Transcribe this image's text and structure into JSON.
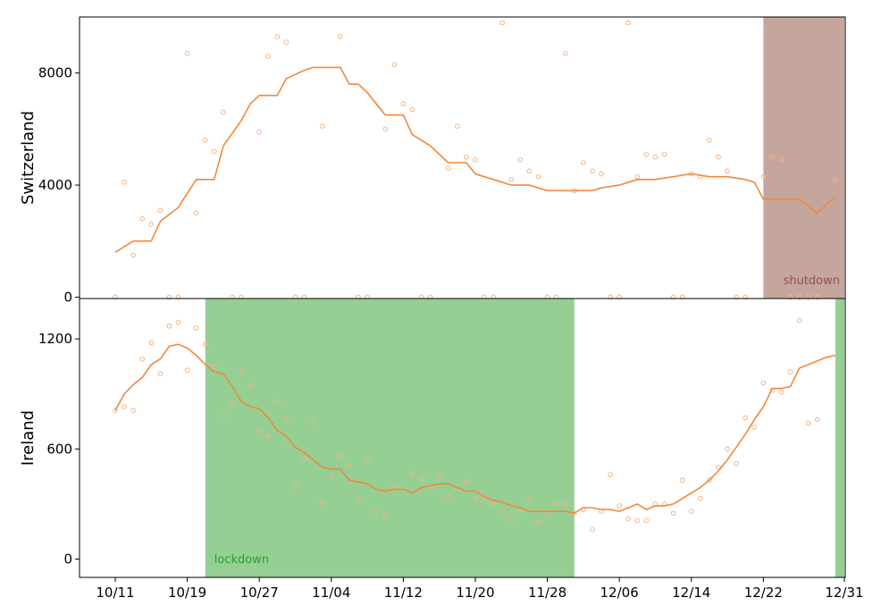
{
  "chart_data": [
    {
      "type": "line",
      "panel": "top",
      "ylabel": "Switzerland",
      "ylim": [
        -50,
        10000
      ],
      "yticks": [
        0,
        4000,
        8000
      ],
      "line_color": "#f0883a",
      "band": {
        "label": "shutdown",
        "start": "12/22",
        "end": "12/31",
        "color": "#c4a69d",
        "label_color": "#8c564b"
      },
      "smoothed": [
        {
          "x": "10/11",
          "y": 1600
        },
        {
          "x": "10/13",
          "y": 2000
        },
        {
          "x": "10/15",
          "y": 2000
        },
        {
          "x": "10/16",
          "y": 2700
        },
        {
          "x": "10/18",
          "y": 3200
        },
        {
          "x": "10/20",
          "y": 4200
        },
        {
          "x": "10/22",
          "y": 4200
        },
        {
          "x": "10/23",
          "y": 5400
        },
        {
          "x": "10/25",
          "y": 6300
        },
        {
          "x": "10/26",
          "y": 6900
        },
        {
          "x": "10/27",
          "y": 7200
        },
        {
          "x": "10/29",
          "y": 7200
        },
        {
          "x": "10/30",
          "y": 7800
        },
        {
          "x": "11/01",
          "y": 8100
        },
        {
          "x": "11/02",
          "y": 8200
        },
        {
          "x": "11/05",
          "y": 8200
        },
        {
          "x": "11/06",
          "y": 7600
        },
        {
          "x": "11/07",
          "y": 7600
        },
        {
          "x": "11/08",
          "y": 7300
        },
        {
          "x": "11/10",
          "y": 6500
        },
        {
          "x": "11/11",
          "y": 6500
        },
        {
          "x": "11/12",
          "y": 6500
        },
        {
          "x": "11/13",
          "y": 5800
        },
        {
          "x": "11/15",
          "y": 5400
        },
        {
          "x": "11/17",
          "y": 4800
        },
        {
          "x": "11/19",
          "y": 4800
        },
        {
          "x": "11/20",
          "y": 4400
        },
        {
          "x": "11/22",
          "y": 4200
        },
        {
          "x": "11/24",
          "y": 4000
        },
        {
          "x": "11/26",
          "y": 4000
        },
        {
          "x": "11/28",
          "y": 3800
        },
        {
          "x": "11/30",
          "y": 3800
        },
        {
          "x": "12/03",
          "y": 3800
        },
        {
          "x": "12/04",
          "y": 3900
        },
        {
          "x": "12/06",
          "y": 4000
        },
        {
          "x": "12/08",
          "y": 4200
        },
        {
          "x": "12/10",
          "y": 4200
        },
        {
          "x": "12/12",
          "y": 4300
        },
        {
          "x": "12/14",
          "y": 4400
        },
        {
          "x": "12/16",
          "y": 4300
        },
        {
          "x": "12/18",
          "y": 4300
        },
        {
          "x": "12/20",
          "y": 4200
        },
        {
          "x": "12/21",
          "y": 4100
        },
        {
          "x": "12/22",
          "y": 3500
        },
        {
          "x": "12/26",
          "y": 3500
        },
        {
          "x": "12/28",
          "y": 3000
        },
        {
          "x": "12/30",
          "y": 3600
        }
      ],
      "daily": [
        {
          "x": "10/11",
          "y": 0
        },
        {
          "x": "10/12",
          "y": 4100
        },
        {
          "x": "10/13",
          "y": 1500
        },
        {
          "x": "10/14",
          "y": 2800
        },
        {
          "x": "10/15",
          "y": 2600
        },
        {
          "x": "10/16",
          "y": 3100
        },
        {
          "x": "10/17",
          "y": 0
        },
        {
          "x": "10/18",
          "y": 0
        },
        {
          "x": "10/19",
          "y": 8700
        },
        {
          "x": "10/20",
          "y": 3000
        },
        {
          "x": "10/21",
          "y": 5600
        },
        {
          "x": "10/22",
          "y": 5200
        },
        {
          "x": "10/23",
          "y": 6600
        },
        {
          "x": "10/24",
          "y": 0
        },
        {
          "x": "10/25",
          "y": 0
        },
        {
          "x": "10/27",
          "y": 5900
        },
        {
          "x": "10/28",
          "y": 8600
        },
        {
          "x": "10/29",
          "y": 9300
        },
        {
          "x": "10/30",
          "y": 9100
        },
        {
          "x": "10/31",
          "y": 0
        },
        {
          "x": "11/01",
          "y": 0
        },
        {
          "x": "11/03",
          "y": 6100
        },
        {
          "x": "11/05",
          "y": 9300
        },
        {
          "x": "11/07",
          "y": 0
        },
        {
          "x": "11/08",
          "y": 0
        },
        {
          "x": "11/10",
          "y": 6000
        },
        {
          "x": "11/11",
          "y": 8300
        },
        {
          "x": "11/12",
          "y": 6900
        },
        {
          "x": "11/13",
          "y": 6700
        },
        {
          "x": "11/14",
          "y": 0
        },
        {
          "x": "11/15",
          "y": 0
        },
        {
          "x": "11/17",
          "y": 4600
        },
        {
          "x": "11/18",
          "y": 6100
        },
        {
          "x": "11/19",
          "y": 5000
        },
        {
          "x": "11/20",
          "y": 4900
        },
        {
          "x": "11/21",
          "y": 0
        },
        {
          "x": "11/22",
          "y": 0
        },
        {
          "x": "11/23",
          "y": 9800
        },
        {
          "x": "11/24",
          "y": 4200
        },
        {
          "x": "11/25",
          "y": 4900
        },
        {
          "x": "11/26",
          "y": 4500
        },
        {
          "x": "11/27",
          "y": 4300
        },
        {
          "x": "11/28",
          "y": 0
        },
        {
          "x": "11/29",
          "y": 0
        },
        {
          "x": "11/30",
          "y": 8700
        },
        {
          "x": "12/01",
          "y": 3800
        },
        {
          "x": "12/02",
          "y": 4800
        },
        {
          "x": "12/03",
          "y": 4500
        },
        {
          "x": "12/04",
          "y": 4400
        },
        {
          "x": "12/05",
          "y": 0
        },
        {
          "x": "12/06",
          "y": 0
        },
        {
          "x": "12/07",
          "y": 9800
        },
        {
          "x": "12/08",
          "y": 4300
        },
        {
          "x": "12/09",
          "y": 5100
        },
        {
          "x": "12/10",
          "y": 5000
        },
        {
          "x": "12/11",
          "y": 5100
        },
        {
          "x": "12/12",
          "y": 0
        },
        {
          "x": "12/13",
          "y": 0
        },
        {
          "x": "12/14",
          "y": 4400
        },
        {
          "x": "12/15",
          "y": 4300
        },
        {
          "x": "12/16",
          "y": 5600
        },
        {
          "x": "12/17",
          "y": 5000
        },
        {
          "x": "12/18",
          "y": 4500
        },
        {
          "x": "12/19",
          "y": 0
        },
        {
          "x": "12/20",
          "y": 0
        },
        {
          "x": "12/22",
          "y": 4300
        },
        {
          "x": "12/23",
          "y": 5000
        },
        {
          "x": "12/24",
          "y": 4900
        },
        {
          "x": "12/25",
          "y": 0
        },
        {
          "x": "12/26",
          "y": 0
        },
        {
          "x": "12/27",
          "y": 0
        },
        {
          "x": "12/28",
          "y": 0
        },
        {
          "x": "12/30",
          "y": 4200
        }
      ]
    },
    {
      "type": "line",
      "panel": "bottom",
      "ylabel": "Ireland",
      "ylim": [
        -100,
        1420
      ],
      "yticks": [
        0,
        600,
        1200
      ],
      "line_color": "#f0883a",
      "band": {
        "label": "lockdown",
        "start": "10/21",
        "end": "12/01",
        "color": "#95cf94",
        "label_color": "#2ca02c"
      },
      "band2": {
        "start": "12/30",
        "end": "12/31",
        "color": "#95cf94"
      },
      "smoothed": [
        {
          "x": "10/11",
          "y": 810
        },
        {
          "x": "10/12",
          "y": 900
        },
        {
          "x": "10/13",
          "y": 950
        },
        {
          "x": "10/14",
          "y": 990
        },
        {
          "x": "10/15",
          "y": 1060
        },
        {
          "x": "10/16",
          "y": 1090
        },
        {
          "x": "10/17",
          "y": 1160
        },
        {
          "x": "10/18",
          "y": 1170
        },
        {
          "x": "10/19",
          "y": 1150
        },
        {
          "x": "10/20",
          "y": 1110
        },
        {
          "x": "10/21",
          "y": 1060
        },
        {
          "x": "10/22",
          "y": 1020
        },
        {
          "x": "10/23",
          "y": 1010
        },
        {
          "x": "10/24",
          "y": 940
        },
        {
          "x": "10/25",
          "y": 860
        },
        {
          "x": "10/26",
          "y": 830
        },
        {
          "x": "10/27",
          "y": 820
        },
        {
          "x": "10/28",
          "y": 770
        },
        {
          "x": "10/29",
          "y": 700
        },
        {
          "x": "10/30",
          "y": 670
        },
        {
          "x": "10/31",
          "y": 610
        },
        {
          "x": "11/01",
          "y": 580
        },
        {
          "x": "11/02",
          "y": 540
        },
        {
          "x": "11/03",
          "y": 500
        },
        {
          "x": "11/04",
          "y": 490
        },
        {
          "x": "11/05",
          "y": 490
        },
        {
          "x": "11/06",
          "y": 430
        },
        {
          "x": "11/07",
          "y": 420
        },
        {
          "x": "11/08",
          "y": 410
        },
        {
          "x": "11/09",
          "y": 380
        },
        {
          "x": "11/10",
          "y": 370
        },
        {
          "x": "11/11",
          "y": 380
        },
        {
          "x": "11/12",
          "y": 380
        },
        {
          "x": "11/13",
          "y": 360
        },
        {
          "x": "11/14",
          "y": 390
        },
        {
          "x": "11/15",
          "y": 400
        },
        {
          "x": "11/16",
          "y": 410
        },
        {
          "x": "11/17",
          "y": 410
        },
        {
          "x": "11/18",
          "y": 390
        },
        {
          "x": "11/19",
          "y": 370
        },
        {
          "x": "11/20",
          "y": 370
        },
        {
          "x": "11/21",
          "y": 340
        },
        {
          "x": "11/22",
          "y": 320
        },
        {
          "x": "11/23",
          "y": 310
        },
        {
          "x": "11/24",
          "y": 290
        },
        {
          "x": "11/25",
          "y": 280
        },
        {
          "x": "11/26",
          "y": 260
        },
        {
          "x": "11/27",
          "y": 260
        },
        {
          "x": "11/28",
          "y": 260
        },
        {
          "x": "11/29",
          "y": 260
        },
        {
          "x": "11/30",
          "y": 260
        },
        {
          "x": "12/01",
          "y": 250
        },
        {
          "x": "12/02",
          "y": 280
        },
        {
          "x": "12/03",
          "y": 280
        },
        {
          "x": "12/04",
          "y": 270
        },
        {
          "x": "12/05",
          "y": 270
        },
        {
          "x": "12/06",
          "y": 260
        },
        {
          "x": "12/07",
          "y": 280
        },
        {
          "x": "12/08",
          "y": 300
        },
        {
          "x": "12/09",
          "y": 270
        },
        {
          "x": "12/10",
          "y": 290
        },
        {
          "x": "12/11",
          "y": 290
        },
        {
          "x": "12/12",
          "y": 300
        },
        {
          "x": "12/13",
          "y": 330
        },
        {
          "x": "12/14",
          "y": 360
        },
        {
          "x": "12/15",
          "y": 390
        },
        {
          "x": "12/16",
          "y": 430
        },
        {
          "x": "12/17",
          "y": 480
        },
        {
          "x": "12/18",
          "y": 540
        },
        {
          "x": "12/19",
          "y": 610
        },
        {
          "x": "12/20",
          "y": 680
        },
        {
          "x": "12/21",
          "y": 760
        },
        {
          "x": "12/22",
          "y": 830
        },
        {
          "x": "12/23",
          "y": 930
        },
        {
          "x": "12/24",
          "y": 930
        },
        {
          "x": "12/25",
          "y": 940
        },
        {
          "x": "12/26",
          "y": 1040
        },
        {
          "x": "12/27",
          "y": 1060
        },
        {
          "x": "12/28",
          "y": 1080
        },
        {
          "x": "12/29",
          "y": 1100
        },
        {
          "x": "12/30",
          "y": 1110
        }
      ],
      "daily": [
        {
          "x": "10/11",
          "y": 810
        },
        {
          "x": "10/12",
          "y": 830
        },
        {
          "x": "10/13",
          "y": 810
        },
        {
          "x": "10/14",
          "y": 1090
        },
        {
          "x": "10/15",
          "y": 1180
        },
        {
          "x": "10/16",
          "y": 1010
        },
        {
          "x": "10/17",
          "y": 1270
        },
        {
          "x": "10/18",
          "y": 1290
        },
        {
          "x": "10/19",
          "y": 1030
        },
        {
          "x": "10/20",
          "y": 1260
        },
        {
          "x": "10/21",
          "y": 1170
        },
        {
          "x": "10/22",
          "y": 1050
        },
        {
          "x": "10/23",
          "y": 780
        },
        {
          "x": "10/24",
          "y": 850
        },
        {
          "x": "10/25",
          "y": 1020
        },
        {
          "x": "10/26",
          "y": 940
        },
        {
          "x": "10/27",
          "y": 700
        },
        {
          "x": "10/28",
          "y": 670
        },
        {
          "x": "10/29",
          "y": 860
        },
        {
          "x": "10/30",
          "y": 760
        },
        {
          "x": "10/31",
          "y": 400
        },
        {
          "x": "11/01",
          "y": 550
        },
        {
          "x": "11/02",
          "y": 750
        },
        {
          "x": "11/03",
          "y": 310
        },
        {
          "x": "11/04",
          "y": 450
        },
        {
          "x": "11/05",
          "y": 560
        },
        {
          "x": "11/06",
          "y": 510
        },
        {
          "x": "11/07",
          "y": 320
        },
        {
          "x": "11/08",
          "y": 540
        },
        {
          "x": "11/09",
          "y": 260
        },
        {
          "x": "11/10",
          "y": 230
        },
        {
          "x": "11/11",
          "y": 390
        },
        {
          "x": "11/12",
          "y": 380
        },
        {
          "x": "11/13",
          "y": 460
        },
        {
          "x": "11/14",
          "y": 440
        },
        {
          "x": "11/15",
          "y": 390
        },
        {
          "x": "11/16",
          "y": 450
        },
        {
          "x": "11/17",
          "y": 340
        },
        {
          "x": "11/18",
          "y": 380
        },
        {
          "x": "11/19",
          "y": 420
        },
        {
          "x": "11/20",
          "y": 330
        },
        {
          "x": "11/21",
          "y": 330
        },
        {
          "x": "11/22",
          "y": 300
        },
        {
          "x": "11/23",
          "y": 260
        },
        {
          "x": "11/24",
          "y": 220
        },
        {
          "x": "11/25",
          "y": 270
        },
        {
          "x": "11/26",
          "y": 320
        },
        {
          "x": "11/27",
          "y": 200
        },
        {
          "x": "11/28",
          "y": 250
        },
        {
          "x": "11/29",
          "y": 300
        },
        {
          "x": "11/30",
          "y": 300
        },
        {
          "x": "12/01",
          "y": 250
        },
        {
          "x": "12/02",
          "y": 270
        },
        {
          "x": "12/03",
          "y": 160
        },
        {
          "x": "12/04",
          "y": 260
        },
        {
          "x": "12/05",
          "y": 460
        },
        {
          "x": "12/06",
          "y": 290
        },
        {
          "x": "12/07",
          "y": 220
        },
        {
          "x": "12/08",
          "y": 210
        },
        {
          "x": "12/09",
          "y": 210
        },
        {
          "x": "12/10",
          "y": 300
        },
        {
          "x": "12/11",
          "y": 300
        },
        {
          "x": "12/12",
          "y": 250
        },
        {
          "x": "12/13",
          "y": 430
        },
        {
          "x": "12/14",
          "y": 260
        },
        {
          "x": "12/15",
          "y": 330
        },
        {
          "x": "12/16",
          "y": 430
        },
        {
          "x": "12/17",
          "y": 500
        },
        {
          "x": "12/18",
          "y": 600
        },
        {
          "x": "12/19",
          "y": 520
        },
        {
          "x": "12/20",
          "y": 770
        },
        {
          "x": "12/21",
          "y": 720
        },
        {
          "x": "12/22",
          "y": 960
        },
        {
          "x": "12/23",
          "y": 920
        },
        {
          "x": "12/24",
          "y": 910
        },
        {
          "x": "12/25",
          "y": 1020
        },
        {
          "x": "12/26",
          "y": 1300
        },
        {
          "x": "12/27",
          "y": 740
        },
        {
          "x": "12/28",
          "y": 760
        }
      ]
    }
  ],
  "x_axis": {
    "start": "10/11",
    "end": "12/31",
    "ticks": [
      "10/11",
      "10/19",
      "10/27",
      "11/04",
      "11/12",
      "11/20",
      "11/28",
      "12/06",
      "12/14",
      "12/22",
      "12/31"
    ]
  },
  "colors": {
    "line": "#f0883a",
    "dots": "#f5b384"
  }
}
